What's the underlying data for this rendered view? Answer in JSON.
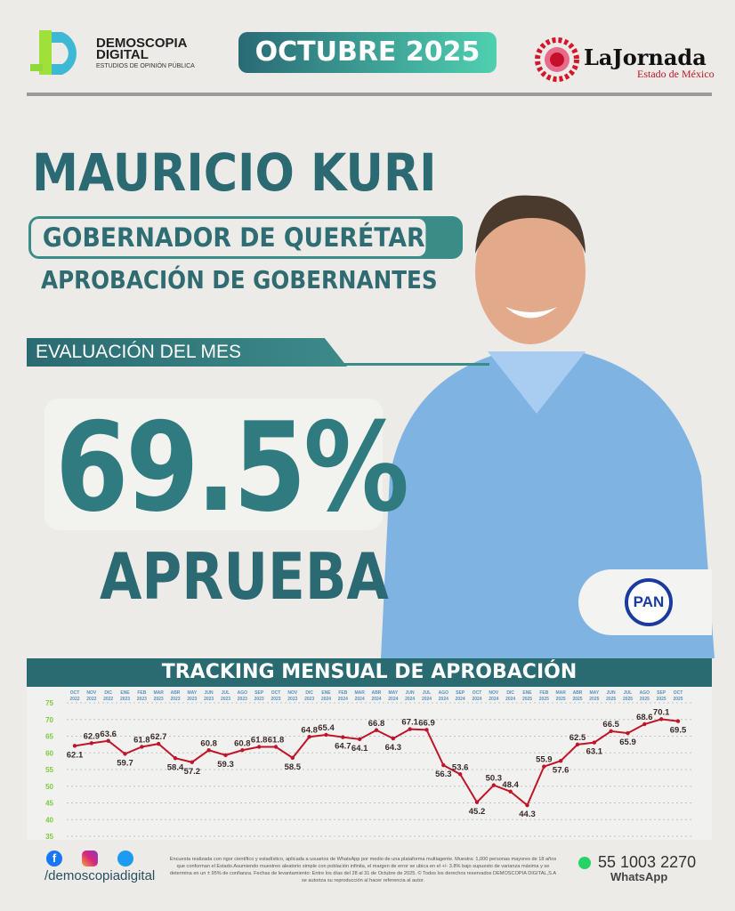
{
  "header": {
    "brand_name_1": "DEMOSCOPIA",
    "brand_name_2": "DIGITAL",
    "brand_tagline": "ESTUDIOS DE OPINIÓN PÚBLICA",
    "month": "OCTUBRE 2025",
    "partner_name": "LaJornada",
    "partner_sub": "Estado de México"
  },
  "hero": {
    "name": "MAURICIO KURI",
    "position": "GOBERNADOR DE QUERÉTARO",
    "subtitle": "APROBACIÓN DE GOBERNANTES",
    "eval_label": "EVALUACIÓN DEL MES",
    "approval_value": "69.5%",
    "approval_label": "APRUEBA",
    "party": "PAN"
  },
  "colors": {
    "teal": "#2a6b72",
    "line": "#c0142a",
    "ytick": "#7ccc3c",
    "xtick": "#5a8fc0"
  },
  "chart_data": {
    "type": "line",
    "title": "TRACKING MENSUAL DE APROBACIÓN",
    "categories": [
      "OCT 2022",
      "NOV 2022",
      "DIC 2022",
      "ENE 2023",
      "FEB 2023",
      "MAR 2023",
      "ABR 2023",
      "MAY 2023",
      "JUN 2023",
      "JUL 2023",
      "AGO 2023",
      "SEP 2023",
      "OCT 2023",
      "NOV 2023",
      "DIC 2023",
      "ENE 2024",
      "FEB 2024",
      "MAR 2024",
      "ABR 2024",
      "MAY 2024",
      "JUN 2024",
      "JUL 2024",
      "AGO 2024",
      "SEP 2024",
      "OCT 2024",
      "NOV 2024",
      "DIC 2024",
      "ENE 2025",
      "FEB 2025",
      "MAR 2025",
      "ABR 2025",
      "MAY 2025",
      "JUN 2025",
      "JUL 2025",
      "AGO 2025",
      "SEP 2025",
      "OCT 2025"
    ],
    "values": [
      62.1,
      62.9,
      63.6,
      59.7,
      61.8,
      62.7,
      58.4,
      57.2,
      60.8,
      59.3,
      60.8,
      61.8,
      61.8,
      58.5,
      64.8,
      65.4,
      64.7,
      64.1,
      66.8,
      64.3,
      67.1,
      66.9,
      56.3,
      53.6,
      45.2,
      50.3,
      48.4,
      44.3,
      55.9,
      57.6,
      62.5,
      63.1,
      66.5,
      65.9,
      68.6,
      70.1,
      69.5
    ],
    "yticks": [
      75,
      70,
      65,
      60,
      55,
      50,
      45,
      40,
      35
    ],
    "ylim": [
      35,
      75
    ],
    "grid": true
  },
  "footer": {
    "handle": "/demoscopiadigital",
    "disclaimer": "Encuesta realizada con rigor científico y estadístico, aplicada a usuarios de WhatsApp por medio de una plataforma multiagente. Muestra: 1,000 personas mayores de 18 años que conforman el Estado.Asumiendo muestreo aleatorio simple con población infinita, el margen de error se ubica en el +/- 3.8% bajo supuesto de varianza máxima y se determina en un ± 95% de confianza. Fechas de levantamiento: Entre los días del 28 al 31 de Octubre de 2025. © Todos los derechos reservados DEMOSCOPIA DIGITAL,S.A se autoriza su reproducción al hacer referencia al autor.",
    "phone": "55 1003 2270",
    "phone_label": "WhatsApp"
  }
}
